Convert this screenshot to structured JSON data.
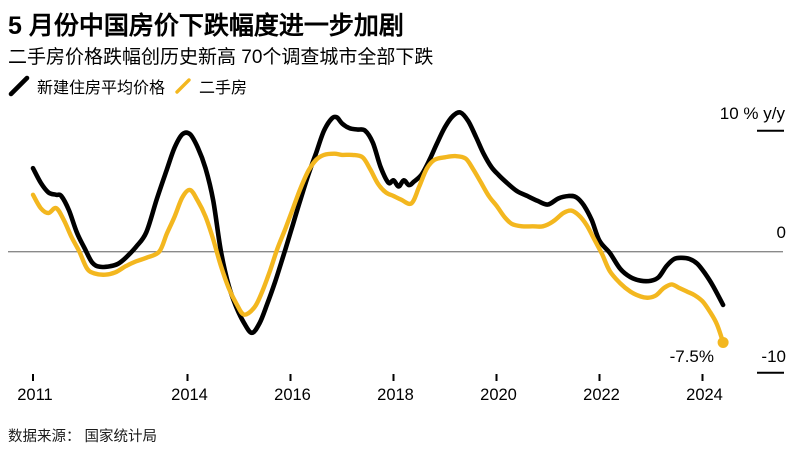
{
  "header": {
    "title": "5 月份中国房价下跌幅度进一步加剧",
    "subtitle": "二手房价格跌幅创历史新高 70个调查城市全部下跌"
  },
  "legend": [
    {
      "label": "新建住房平均价格",
      "color": "#000000"
    },
    {
      "label": "二手房",
      "color": "#F3B71F"
    }
  ],
  "footer": {
    "source": "数据来源： 国家统计局"
  },
  "colors": {
    "new_home_line": "#000000",
    "second_hand_line": "#F3B71F",
    "zero_line": "#8a8a8a",
    "axis_tick": "#000000"
  },
  "axis_labels": {
    "top": "10 % y/y",
    "zero": "0",
    "bottom": "-10"
  },
  "chart_data": {
    "type": "line",
    "title": "5 月份中国房价下跌幅度进一步加剧",
    "subtitle": "二手房价格跌幅创历史新高 70个调查城市全部下跌",
    "ylabel": "% y/y",
    "x_ticks": [
      2011,
      2014,
      2016,
      2018,
      2020,
      2022,
      2024
    ],
    "xlim": [
      2011,
      2024.55
    ],
    "ylim": [
      -10,
      12.5
    ],
    "y_ticks": [
      10,
      0,
      -10
    ],
    "grid": "zero-line-only",
    "legend_position": "top-left",
    "annotation": {
      "text": "-7.5%",
      "x": 2024.4,
      "y": -7.5
    },
    "series": [
      {
        "name": "新建住房平均价格",
        "color": "#000000",
        "width": 4.6,
        "end_dot": false,
        "points": [
          [
            2011.0,
            6.9
          ],
          [
            2011.15,
            5.7
          ],
          [
            2011.3,
            4.9
          ],
          [
            2011.45,
            4.7
          ],
          [
            2011.55,
            4.6
          ],
          [
            2011.7,
            3.4
          ],
          [
            2011.85,
            1.6
          ],
          [
            2012.0,
            0.3
          ],
          [
            2012.15,
            -0.9
          ],
          [
            2012.3,
            -1.25
          ],
          [
            2012.5,
            -1.2
          ],
          [
            2012.65,
            -1.0
          ],
          [
            2012.8,
            -0.5
          ],
          [
            2013.0,
            0.4
          ],
          [
            2013.2,
            1.6
          ],
          [
            2013.4,
            4.3
          ],
          [
            2013.6,
            6.8
          ],
          [
            2013.75,
            8.6
          ],
          [
            2013.9,
            9.7
          ],
          [
            2014.05,
            9.7
          ],
          [
            2014.2,
            8.6
          ],
          [
            2014.35,
            6.9
          ],
          [
            2014.5,
            4.2
          ],
          [
            2014.65,
            0.0
          ],
          [
            2014.8,
            -2.8
          ],
          [
            2014.95,
            -4.6
          ],
          [
            2015.1,
            -5.9
          ],
          [
            2015.25,
            -6.7
          ],
          [
            2015.4,
            -5.9
          ],
          [
            2015.55,
            -4.3
          ],
          [
            2015.7,
            -2.5
          ],
          [
            2015.9,
            0.2
          ],
          [
            2016.05,
            2.3
          ],
          [
            2016.2,
            4.4
          ],
          [
            2016.35,
            6.4
          ],
          [
            2016.5,
            8.2
          ],
          [
            2016.65,
            10.0
          ],
          [
            2016.8,
            11.0
          ],
          [
            2016.9,
            11.1
          ],
          [
            2017.0,
            10.6
          ],
          [
            2017.15,
            10.2
          ],
          [
            2017.3,
            10.1
          ],
          [
            2017.45,
            10.0
          ],
          [
            2017.6,
            9.0
          ],
          [
            2017.75,
            7.0
          ],
          [
            2017.9,
            5.7
          ],
          [
            2018.0,
            5.9
          ],
          [
            2018.1,
            5.4
          ],
          [
            2018.2,
            5.9
          ],
          [
            2018.3,
            5.5
          ],
          [
            2018.4,
            5.8
          ],
          [
            2018.55,
            6.4
          ],
          [
            2018.7,
            7.6
          ],
          [
            2018.85,
            9.0
          ],
          [
            2019.0,
            10.3
          ],
          [
            2019.15,
            11.2
          ],
          [
            2019.3,
            11.5
          ],
          [
            2019.45,
            10.8
          ],
          [
            2019.6,
            9.5
          ],
          [
            2019.75,
            8.1
          ],
          [
            2019.9,
            7.0
          ],
          [
            2020.05,
            6.3
          ],
          [
            2020.2,
            5.7
          ],
          [
            2020.4,
            5.0
          ],
          [
            2020.6,
            4.6
          ],
          [
            2020.8,
            4.2
          ],
          [
            2021.0,
            3.9
          ],
          [
            2021.2,
            4.4
          ],
          [
            2021.4,
            4.6
          ],
          [
            2021.55,
            4.5
          ],
          [
            2021.7,
            3.8
          ],
          [
            2021.85,
            2.6
          ],
          [
            2022.0,
            0.9
          ],
          [
            2022.2,
            -0.1
          ],
          [
            2022.4,
            -1.4
          ],
          [
            2022.6,
            -2.1
          ],
          [
            2022.8,
            -2.4
          ],
          [
            2023.0,
            -2.4
          ],
          [
            2023.15,
            -2.1
          ],
          [
            2023.3,
            -1.2
          ],
          [
            2023.45,
            -0.6
          ],
          [
            2023.6,
            -0.5
          ],
          [
            2023.75,
            -0.6
          ],
          [
            2023.9,
            -1.0
          ],
          [
            2024.05,
            -1.8
          ],
          [
            2024.2,
            -2.8
          ],
          [
            2024.4,
            -4.4
          ]
        ]
      },
      {
        "name": "二手房",
        "color": "#F3B71F",
        "width": 4.4,
        "end_dot": true,
        "points": [
          [
            2011.0,
            4.7
          ],
          [
            2011.15,
            3.6
          ],
          [
            2011.3,
            3.2
          ],
          [
            2011.45,
            3.6
          ],
          [
            2011.6,
            2.6
          ],
          [
            2011.75,
            1.2
          ],
          [
            2011.9,
            0.0
          ],
          [
            2012.05,
            -1.4
          ],
          [
            2012.2,
            -1.8
          ],
          [
            2012.4,
            -1.9
          ],
          [
            2012.6,
            -1.7
          ],
          [
            2012.8,
            -1.2
          ],
          [
            2013.0,
            -0.8
          ],
          [
            2013.2,
            -0.5
          ],
          [
            2013.45,
            0.0
          ],
          [
            2013.6,
            1.5
          ],
          [
            2013.75,
            2.9
          ],
          [
            2013.9,
            4.5
          ],
          [
            2014.05,
            5.1
          ],
          [
            2014.2,
            4.2
          ],
          [
            2014.35,
            2.9
          ],
          [
            2014.5,
            1.0
          ],
          [
            2014.65,
            -1.2
          ],
          [
            2014.8,
            -3.0
          ],
          [
            2014.95,
            -4.3
          ],
          [
            2015.1,
            -5.2
          ],
          [
            2015.3,
            -4.6
          ],
          [
            2015.45,
            -3.3
          ],
          [
            2015.6,
            -1.6
          ],
          [
            2015.75,
            0.3
          ],
          [
            2015.9,
            1.9
          ],
          [
            2016.05,
            3.6
          ],
          [
            2016.2,
            5.3
          ],
          [
            2016.35,
            6.7
          ],
          [
            2016.5,
            7.6
          ],
          [
            2016.65,
            8.0
          ],
          [
            2016.85,
            8.1
          ],
          [
            2017.0,
            8.0
          ],
          [
            2017.2,
            8.0
          ],
          [
            2017.4,
            7.8
          ],
          [
            2017.55,
            6.8
          ],
          [
            2017.7,
            5.6
          ],
          [
            2017.85,
            4.9
          ],
          [
            2018.0,
            4.6
          ],
          [
            2018.15,
            4.3
          ],
          [
            2018.35,
            4.0
          ],
          [
            2018.5,
            5.4
          ],
          [
            2018.65,
            6.9
          ],
          [
            2018.8,
            7.6
          ],
          [
            2019.0,
            7.8
          ],
          [
            2019.2,
            7.9
          ],
          [
            2019.4,
            7.7
          ],
          [
            2019.55,
            6.8
          ],
          [
            2019.7,
            5.7
          ],
          [
            2019.85,
            4.6
          ],
          [
            2020.0,
            3.8
          ],
          [
            2020.15,
            2.9
          ],
          [
            2020.3,
            2.3
          ],
          [
            2020.5,
            2.1
          ],
          [
            2020.7,
            2.1
          ],
          [
            2020.9,
            2.1
          ],
          [
            2021.1,
            2.5
          ],
          [
            2021.3,
            3.2
          ],
          [
            2021.45,
            3.4
          ],
          [
            2021.6,
            3.0
          ],
          [
            2021.75,
            2.2
          ],
          [
            2021.9,
            1.0
          ],
          [
            2022.05,
            -0.2
          ],
          [
            2022.2,
            -1.6
          ],
          [
            2022.4,
            -2.6
          ],
          [
            2022.6,
            -3.3
          ],
          [
            2022.8,
            -3.7
          ],
          [
            2022.95,
            -3.8
          ],
          [
            2023.1,
            -3.6
          ],
          [
            2023.25,
            -3.0
          ],
          [
            2023.4,
            -2.7
          ],
          [
            2023.55,
            -3.0
          ],
          [
            2023.7,
            -3.3
          ],
          [
            2023.85,
            -3.6
          ],
          [
            2024.0,
            -4.1
          ],
          [
            2024.15,
            -5.0
          ],
          [
            2024.28,
            -6.0
          ],
          [
            2024.4,
            -7.5
          ]
        ]
      }
    ]
  }
}
